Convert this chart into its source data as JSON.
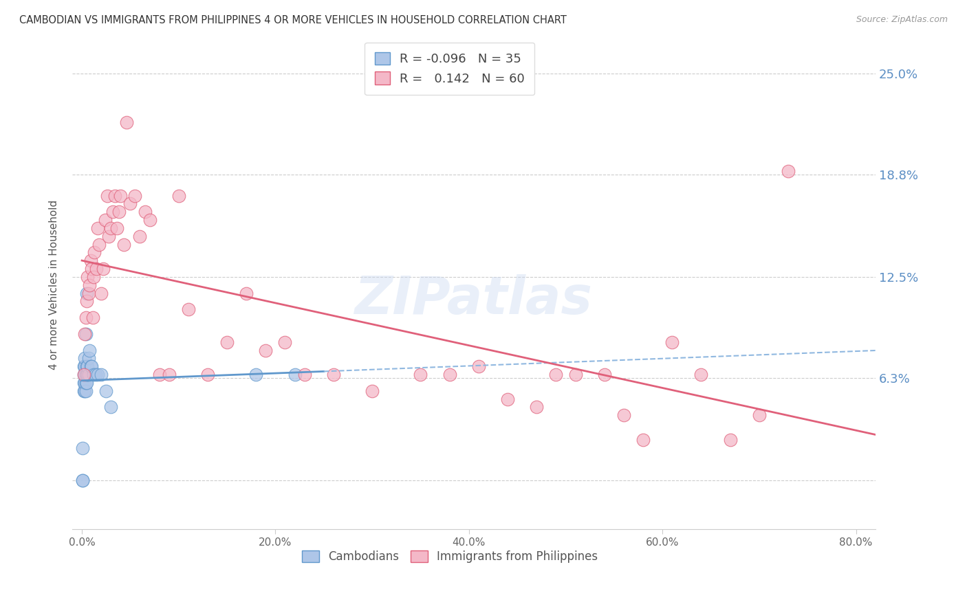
{
  "title": "CAMBODIAN VS IMMIGRANTS FROM PHILIPPINES 4 OR MORE VEHICLES IN HOUSEHOLD CORRELATION CHART",
  "source": "Source: ZipAtlas.com",
  "ylabel": "4 or more Vehicles in Household",
  "xlabel_ticks": [
    "0.0%",
    "20.0%",
    "40.0%",
    "60.0%",
    "80.0%"
  ],
  "xlabel_vals": [
    0.0,
    0.2,
    0.4,
    0.6,
    0.8
  ],
  "ytick_vals": [
    0.0,
    0.063,
    0.125,
    0.188,
    0.25
  ],
  "yright_labels": [
    "25.0%",
    "18.8%",
    "12.5%",
    "6.3%"
  ],
  "yright_vals": [
    0.25,
    0.188,
    0.125,
    0.063
  ],
  "xlim": [
    -0.01,
    0.82
  ],
  "ylim": [
    -0.03,
    0.27
  ],
  "legend_R1": "-0.096",
  "legend_N1": "35",
  "legend_R2": "0.142",
  "legend_N2": "60",
  "color_cambodian": "#aec6e8",
  "color_philippines": "#f4b8c8",
  "color_line_cambodian": "#6098cc",
  "color_line_philippines": "#e0607a",
  "color_line_cambodian_dash": "#90b8e0",
  "color_right_axis": "#5b8ec4",
  "watermark": "ZIPatlas",
  "camb_slope": -0.096,
  "camb_intercept_pct": 0.071,
  "phil_slope": 0.142,
  "phil_intercept_pct": 0.098,
  "cambodian_x": [
    0.001,
    0.001,
    0.001,
    0.002,
    0.002,
    0.002,
    0.002,
    0.003,
    0.003,
    0.003,
    0.003,
    0.003,
    0.004,
    0.004,
    0.004,
    0.004,
    0.005,
    0.005,
    0.005,
    0.005,
    0.006,
    0.006,
    0.007,
    0.007,
    0.008,
    0.009,
    0.01,
    0.012,
    0.014,
    0.016,
    0.02,
    0.025,
    0.03,
    0.18,
    0.22
  ],
  "cambodian_y": [
    0.0,
    0.0,
    0.02,
    0.055,
    0.06,
    0.065,
    0.07,
    0.055,
    0.06,
    0.065,
    0.07,
    0.075,
    0.055,
    0.06,
    0.065,
    0.09,
    0.06,
    0.065,
    0.07,
    0.115,
    0.065,
    0.07,
    0.065,
    0.075,
    0.08,
    0.07,
    0.07,
    0.065,
    0.065,
    0.065,
    0.065,
    0.055,
    0.045,
    0.065,
    0.065
  ],
  "philippines_x": [
    0.002,
    0.003,
    0.004,
    0.005,
    0.006,
    0.007,
    0.008,
    0.009,
    0.01,
    0.011,
    0.012,
    0.013,
    0.015,
    0.016,
    0.018,
    0.02,
    0.022,
    0.024,
    0.026,
    0.028,
    0.03,
    0.032,
    0.034,
    0.036,
    0.038,
    0.04,
    0.043,
    0.046,
    0.05,
    0.055,
    0.06,
    0.065,
    0.07,
    0.08,
    0.09,
    0.1,
    0.11,
    0.13,
    0.15,
    0.17,
    0.19,
    0.21,
    0.23,
    0.26,
    0.3,
    0.35,
    0.38,
    0.41,
    0.44,
    0.47,
    0.49,
    0.51,
    0.54,
    0.56,
    0.58,
    0.61,
    0.64,
    0.67,
    0.7,
    0.73
  ],
  "philippines_y": [
    0.065,
    0.09,
    0.1,
    0.11,
    0.125,
    0.115,
    0.12,
    0.135,
    0.13,
    0.1,
    0.125,
    0.14,
    0.13,
    0.155,
    0.145,
    0.115,
    0.13,
    0.16,
    0.175,
    0.15,
    0.155,
    0.165,
    0.175,
    0.155,
    0.165,
    0.175,
    0.145,
    0.22,
    0.17,
    0.175,
    0.15,
    0.165,
    0.16,
    0.065,
    0.065,
    0.175,
    0.105,
    0.065,
    0.085,
    0.115,
    0.08,
    0.085,
    0.065,
    0.065,
    0.055,
    0.065,
    0.065,
    0.07,
    0.05,
    0.045,
    0.065,
    0.065,
    0.065,
    0.04,
    0.025,
    0.085,
    0.065,
    0.025,
    0.04,
    0.19
  ]
}
